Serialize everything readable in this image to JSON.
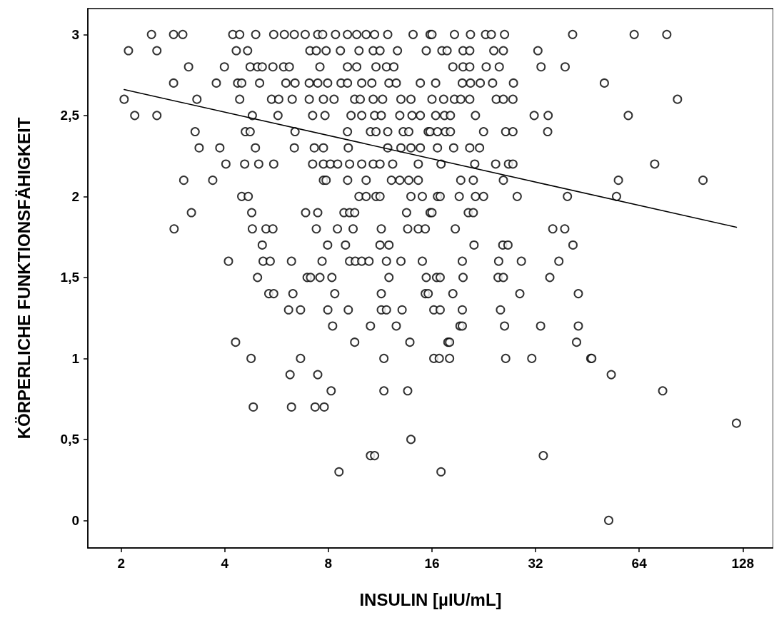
{
  "chart_data": {
    "type": "scatter",
    "xlabel": "INSULIN [µIU/mL]",
    "ylabel": "KÖRPERLICHE FUNKTIONSFÄHIGKEIT",
    "log": "x",
    "grid": false,
    "xlim": [
      1.6,
      157
    ],
    "xticks": [
      2,
      4,
      8,
      16,
      32,
      64,
      128
    ],
    "ylim": [
      -0.17,
      3.16
    ],
    "yticks": [
      0,
      {
        "value": 0.5,
        "label": "0,5"
      },
      1,
      {
        "value": 1.5,
        "label": "1,5"
      },
      2,
      {
        "value": 2.5,
        "label": "2,5"
      },
      3
    ],
    "series": [
      {
        "color": "#000000",
        "marker": "circle",
        "x": [
          2.45,
          2.84,
          3.02,
          4.22,
          4.42,
          4.92,
          5.55,
          5.96,
          6.37,
          6.85,
          7.45,
          7.7,
          8.39,
          9.09,
          9.67,
          10.3,
          10.9,
          11.9,
          14.1,
          15.8,
          16.0,
          18.6,
          20.7,
          22.9,
          23.8,
          26.0,
          41.0,
          61.9,
          77.0,
          2.1,
          2.54,
          4.32,
          4.66,
          7.07,
          7.38,
          7.88,
          8.67,
          9.82,
          10.8,
          11.3,
          12.7,
          15.4,
          17.1,
          17.7,
          19.7,
          20.6,
          24.2,
          25.8,
          32.5,
          3.14,
          3.99,
          4.74,
          4.98,
          5.14,
          5.52,
          5.93,
          6.16,
          7.56,
          9.09,
          9.67,
          11.0,
          11.8,
          12.4,
          18.4,
          19.7,
          20.6,
          23.0,
          25.1,
          33.2,
          39.0,
          2.84,
          3.78,
          4.36,
          4.48,
          5.05,
          6.02,
          6.4,
          7.04,
          7.45,
          7.96,
          8.71,
          9.09,
          10.0,
          10.7,
          12.0,
          12.6,
          14.8,
          16.4,
          19.6,
          20.7,
          22.1,
          24.0,
          27.6,
          50.7,
          2.04,
          3.32,
          4.42,
          5.47,
          5.74,
          6.28,
          7.04,
          7.74,
          8.31,
          9.54,
          9.9,
          10.8,
          11.5,
          13.0,
          13.9,
          16.0,
          17.3,
          18.6,
          19.4,
          20.6,
          24.6,
          25.8,
          27.5,
          82.7,
          2.19,
          2.54,
          4.81,
          5.71,
          7.2,
          7.82,
          9.31,
          10.0,
          10.9,
          11.4,
          12.9,
          14.0,
          14.8,
          16.4,
          17.4,
          18.1,
          21.4,
          31.7,
          34.8,
          59.5,
          3.28,
          4.59,
          4.74,
          6.4,
          9.09,
          10.6,
          11.0,
          11.9,
          13.2,
          13.7,
          15.6,
          15.8,
          16.6,
          17.5,
          18.1,
          22.6,
          26.2,
          27.5,
          34.7,
          3.37,
          3.87,
          4.91,
          6.37,
          7.28,
          7.74,
          9.14,
          11.9,
          13.0,
          13.9,
          14.8,
          16.6,
          18.5,
          20.6,
          22.0,
          4.03,
          4.57,
          5.02,
          5.55,
          7.2,
          7.74,
          8.11,
          8.51,
          9.22,
          10.0,
          10.8,
          11.3,
          12.3,
          14.6,
          17.0,
          21.3,
          24.5,
          26.7,
          27.5,
          71.0,
          3.04,
          3.69,
          7.74,
          7.88,
          9.1,
          10.3,
          12.2,
          12.9,
          13.7,
          14.6,
          19.4,
          21.1,
          25.8,
          55.7,
          98.1,
          4.48,
          4.68,
          9.82,
          10.3,
          11.0,
          11.3,
          13.9,
          15.0,
          16.6,
          16.9,
          19.2,
          21.4,
          22.6,
          28.3,
          39.6,
          55.0,
          3.2,
          4.79,
          6.87,
          7.45,
          8.88,
          9.22,
          9.54,
          13.5,
          15.8,
          16.0,
          20.4,
          21.1,
          2.85,
          4.81,
          5.27,
          5.52,
          7.38,
          8.5,
          9.44,
          11.4,
          13.6,
          14.6,
          15.3,
          18.7,
          35.9,
          38.9,
          5.14,
          7.96,
          8.97,
          11.3,
          12.0,
          21.2,
          25.7,
          26.6,
          41.1,
          4.1,
          5.17,
          5.42,
          6.25,
          7.67,
          9.22,
          9.58,
          10.0,
          10.5,
          11.8,
          13.0,
          15.0,
          19.6,
          25.0,
          29.1,
          37.4,
          4.98,
          6.94,
          7.1,
          7.56,
          8.19,
          12.0,
          15.4,
          16.5,
          16.9,
          19.7,
          24.9,
          25.8,
          35.2,
          5.37,
          5.55,
          6.31,
          8.35,
          11.4,
          15.3,
          15.6,
          18.4,
          28.8,
          42.6,
          6.13,
          6.64,
          7.97,
          9.14,
          11.4,
          11.8,
          13.1,
          16.2,
          16.9,
          19.6,
          25.3,
          8.23,
          10.6,
          12.6,
          19.3,
          19.6,
          26.0,
          33.1,
          42.6,
          4.3,
          9.54,
          13.8,
          17.8,
          18.0,
          42.1,
          4.77,
          6.64,
          11.6,
          16.2,
          16.8,
          18.0,
          26.2,
          31.2,
          46.3,
          46.6,
          6.19,
          7.45,
          53.1,
          8.15,
          11.6,
          13.6,
          74.9,
          4.84,
          6.25,
          7.32,
          7.78,
          122.7,
          13.9,
          10.6,
          10.9,
          33.7,
          8.59,
          17.0,
          52.2
        ],
        "values": [
          3,
          3,
          3,
          3,
          3,
          3,
          3,
          3,
          3,
          3,
          3,
          3,
          3,
          3,
          3,
          3,
          3,
          3,
          3,
          3,
          3,
          3,
          3,
          3,
          3,
          3,
          3,
          3,
          3,
          2.9,
          2.9,
          2.9,
          2.9,
          2.9,
          2.9,
          2.9,
          2.9,
          2.9,
          2.9,
          2.9,
          2.9,
          2.9,
          2.9,
          2.9,
          2.9,
          2.9,
          2.9,
          2.9,
          2.9,
          2.8,
          2.8,
          2.8,
          2.8,
          2.8,
          2.8,
          2.8,
          2.8,
          2.8,
          2.8,
          2.8,
          2.8,
          2.8,
          2.8,
          2.8,
          2.8,
          2.8,
          2.8,
          2.8,
          2.8,
          2.8,
          2.7,
          2.7,
          2.7,
          2.7,
          2.7,
          2.7,
          2.7,
          2.7,
          2.7,
          2.7,
          2.7,
          2.7,
          2.7,
          2.7,
          2.7,
          2.7,
          2.7,
          2.7,
          2.7,
          2.7,
          2.7,
          2.7,
          2.7,
          2.7,
          2.6,
          2.6,
          2.6,
          2.6,
          2.6,
          2.6,
          2.6,
          2.6,
          2.6,
          2.6,
          2.6,
          2.6,
          2.6,
          2.6,
          2.6,
          2.6,
          2.6,
          2.6,
          2.6,
          2.6,
          2.6,
          2.6,
          2.6,
          2.6,
          2.5,
          2.5,
          2.5,
          2.5,
          2.5,
          2.5,
          2.5,
          2.5,
          2.5,
          2.5,
          2.5,
          2.5,
          2.5,
          2.5,
          2.5,
          2.5,
          2.5,
          2.5,
          2.5,
          2.5,
          2.4,
          2.4,
          2.4,
          2.4,
          2.4,
          2.4,
          2.4,
          2.4,
          2.4,
          2.4,
          2.4,
          2.4,
          2.4,
          2.4,
          2.4,
          2.4,
          2.4,
          2.4,
          2.4,
          2.3,
          2.3,
          2.3,
          2.3,
          2.3,
          2.3,
          2.3,
          2.3,
          2.3,
          2.3,
          2.3,
          2.3,
          2.3,
          2.3,
          2.3,
          2.2,
          2.2,
          2.2,
          2.2,
          2.2,
          2.2,
          2.2,
          2.2,
          2.2,
          2.2,
          2.2,
          2.2,
          2.2,
          2.2,
          2.2,
          2.2,
          2.2,
          2.2,
          2.2,
          2.2,
          2.1,
          2.1,
          2.1,
          2.1,
          2.1,
          2.1,
          2.1,
          2.1,
          2.1,
          2.1,
          2.1,
          2.1,
          2.1,
          2.1,
          2.1,
          2,
          2,
          2,
          2,
          2,
          2,
          2,
          2,
          2,
          2,
          2,
          2,
          2,
          2,
          2,
          2,
          1.9,
          1.9,
          1.9,
          1.9,
          1.9,
          1.9,
          1.9,
          1.9,
          1.9,
          1.9,
          1.9,
          1.9,
          1.8,
          1.8,
          1.8,
          1.8,
          1.8,
          1.8,
          1.8,
          1.8,
          1.8,
          1.8,
          1.8,
          1.8,
          1.8,
          1.8,
          1.7,
          1.7,
          1.7,
          1.7,
          1.7,
          1.7,
          1.7,
          1.7,
          1.7,
          1.6,
          1.6,
          1.6,
          1.6,
          1.6,
          1.6,
          1.6,
          1.6,
          1.6,
          1.6,
          1.6,
          1.6,
          1.6,
          1.6,
          1.6,
          1.6,
          1.5,
          1.5,
          1.5,
          1.5,
          1.5,
          1.5,
          1.5,
          1.5,
          1.5,
          1.5,
          1.5,
          1.5,
          1.5,
          1.4,
          1.4,
          1.4,
          1.4,
          1.4,
          1.4,
          1.4,
          1.4,
          1.4,
          1.4,
          1.3,
          1.3,
          1.3,
          1.3,
          1.3,
          1.3,
          1.3,
          1.3,
          1.3,
          1.3,
          1.3,
          1.2,
          1.2,
          1.2,
          1.2,
          1.2,
          1.2,
          1.2,
          1.2,
          1.1,
          1.1,
          1.1,
          1.1,
          1.1,
          1.1,
          1,
          1,
          1,
          1,
          1,
          1,
          1,
          1,
          1,
          1,
          0.9,
          0.9,
          0.9,
          0.8,
          0.8,
          0.8,
          0.8,
          0.7,
          0.7,
          0.7,
          0.7,
          0.6,
          0.5,
          0.4,
          0.4,
          0.4,
          0.3,
          0.3,
          0
        ]
      },
      {
        "type": "line",
        "color": "#000000",
        "marker": "none",
        "line_style": "solid",
        "x": [
          2.04,
          122.7
        ],
        "values": [
          2.66,
          1.81
        ]
      }
    ]
  }
}
